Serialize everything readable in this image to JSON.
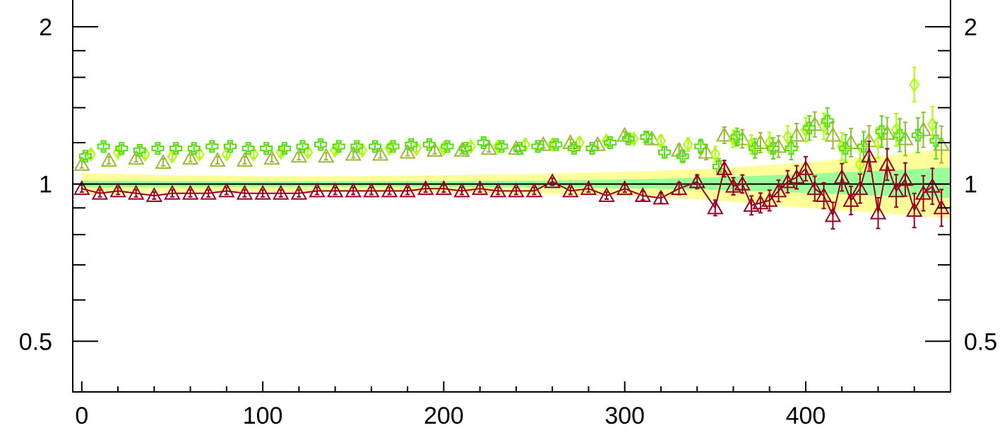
{
  "chart_data": {
    "type": "scatter",
    "title": "",
    "xlabel": "",
    "ylabel": "",
    "xlim": [
      -5,
      480
    ],
    "ylim": [
      0.4,
      2.25
    ],
    "y_scale": "log",
    "grid": false,
    "reference_line": 1,
    "x_ticks": [
      0,
      100,
      200,
      300,
      400
    ],
    "x_tick_labels": [
      "0",
      "100",
      "200",
      "300",
      "400"
    ],
    "y_ticks": [
      0.5,
      1,
      2
    ],
    "y_tick_labels": [
      "0.5",
      "1",
      "2"
    ],
    "bands": [
      {
        "color": "#ffff99",
        "x": [
          0,
          50,
          100,
          150,
          200,
          250,
          300,
          350,
          400,
          440,
          480
        ],
        "lower": [
          0.955,
          0.962,
          0.965,
          0.965,
          0.963,
          0.958,
          0.95,
          0.93,
          0.9,
          0.88,
          0.86
        ],
        "upper": [
          1.05,
          1.04,
          1.035,
          1.035,
          1.04,
          1.045,
          1.055,
          1.07,
          1.1,
          1.13,
          1.17
        ]
      },
      {
        "color": "#99ff99",
        "x": [
          0,
          50,
          100,
          150,
          200,
          250,
          300,
          350,
          400,
          440,
          480
        ],
        "lower": [
          0.985,
          0.987,
          0.988,
          0.988,
          0.987,
          0.985,
          0.982,
          0.975,
          0.962,
          0.95,
          0.94
        ],
        "upper": [
          1.015,
          1.013,
          1.012,
          1.012,
          1.013,
          1.015,
          1.02,
          1.03,
          1.045,
          1.06,
          1.075
        ]
      }
    ],
    "series": [
      {
        "color": "#99bb33",
        "marker": "triangle",
        "connect": false,
        "x": [
          0,
          15,
          30,
          45,
          60,
          75,
          90,
          105,
          120,
          135,
          150,
          165,
          180,
          195,
          210,
          225,
          240,
          255,
          270,
          285,
          300,
          315,
          330,
          345,
          355,
          365,
          375,
          385,
          395,
          405,
          415,
          425,
          435,
          445,
          455,
          465,
          475
        ],
        "y": [
          1.09,
          1.11,
          1.12,
          1.1,
          1.12,
          1.11,
          1.11,
          1.12,
          1.13,
          1.13,
          1.14,
          1.14,
          1.15,
          1.16,
          1.16,
          1.17,
          1.17,
          1.19,
          1.2,
          1.19,
          1.24,
          1.22,
          1.16,
          1.15,
          1.24,
          1.22,
          1.2,
          1.18,
          1.24,
          1.3,
          1.24,
          1.2,
          1.21,
          1.25,
          1.22,
          1.27,
          1.19
        ]
      },
      {
        "color": "#aaff00",
        "marker": "diamond",
        "connect": false,
        "x": [
          5,
          20,
          35,
          50,
          65,
          80,
          95,
          110,
          125,
          140,
          155,
          170,
          185,
          200,
          215,
          230,
          245,
          260,
          275,
          290,
          305,
          320,
          335,
          350,
          360,
          370,
          380,
          390,
          400,
          410,
          420,
          430,
          440,
          450,
          460,
          470
        ],
        "y": [
          1.14,
          1.15,
          1.14,
          1.13,
          1.14,
          1.14,
          1.14,
          1.15,
          1.15,
          1.16,
          1.16,
          1.17,
          1.17,
          1.17,
          1.18,
          1.18,
          1.19,
          1.19,
          1.2,
          1.21,
          1.22,
          1.21,
          1.19,
          1.14,
          1.22,
          1.19,
          1.2,
          1.23,
          1.27,
          1.29,
          1.18,
          1.09,
          1.2,
          1.27,
          1.55,
          1.3
        ]
      },
      {
        "color": "#55dd11",
        "marker": "cross",
        "connect": false,
        "x": [
          2,
          12,
          22,
          32,
          42,
          52,
          62,
          72,
          82,
          92,
          102,
          112,
          122,
          132,
          142,
          152,
          162,
          172,
          182,
          192,
          202,
          212,
          222,
          232,
          242,
          252,
          262,
          272,
          282,
          292,
          302,
          312,
          322,
          332,
          342,
          352,
          362,
          372,
          382,
          392,
          402,
          412,
          422,
          432,
          442,
          452,
          462,
          472
        ],
        "y": [
          1.13,
          1.18,
          1.17,
          1.16,
          1.17,
          1.17,
          1.17,
          1.18,
          1.18,
          1.17,
          1.17,
          1.17,
          1.18,
          1.19,
          1.18,
          1.18,
          1.18,
          1.18,
          1.19,
          1.19,
          1.18,
          1.17,
          1.2,
          1.18,
          1.17,
          1.18,
          1.19,
          1.17,
          1.17,
          1.2,
          1.22,
          1.23,
          1.15,
          1.13,
          1.18,
          1.08,
          1.23,
          1.17,
          1.17,
          1.17,
          1.28,
          1.32,
          1.17,
          1.18,
          1.26,
          1.24,
          1.24,
          1.21
        ]
      },
      {
        "color": "#990022",
        "marker": "triangle",
        "connect": true,
        "x": [
          0,
          10,
          20,
          30,
          40,
          50,
          60,
          70,
          80,
          90,
          100,
          110,
          120,
          130,
          140,
          150,
          160,
          170,
          180,
          190,
          200,
          210,
          220,
          230,
          240,
          250,
          260,
          270,
          280,
          290,
          300,
          310,
          320,
          330,
          340,
          350,
          355,
          360,
          365,
          370,
          375,
          380,
          385,
          390,
          395,
          400,
          405,
          410,
          415,
          420,
          425,
          430,
          435,
          440,
          445,
          450,
          455,
          460,
          465,
          470,
          475
        ],
        "y": [
          0.98,
          0.96,
          0.97,
          0.96,
          0.95,
          0.96,
          0.96,
          0.96,
          0.97,
          0.96,
          0.96,
          0.96,
          0.96,
          0.97,
          0.97,
          0.97,
          0.97,
          0.97,
          0.97,
          0.98,
          0.98,
          0.97,
          0.98,
          0.97,
          0.97,
          0.97,
          1.01,
          0.97,
          0.98,
          0.95,
          0.98,
          0.95,
          0.94,
          0.98,
          1.01,
          0.9,
          1.07,
          0.99,
          1.0,
          0.91,
          0.92,
          0.93,
          0.97,
          1.01,
          1.03,
          1.07,
          0.98,
          0.95,
          0.87,
          1.03,
          0.93,
          0.98,
          1.13,
          0.88,
          1.09,
          0.97,
          1.02,
          0.89,
          0.96,
          0.99,
          0.9
        ]
      }
    ]
  }
}
